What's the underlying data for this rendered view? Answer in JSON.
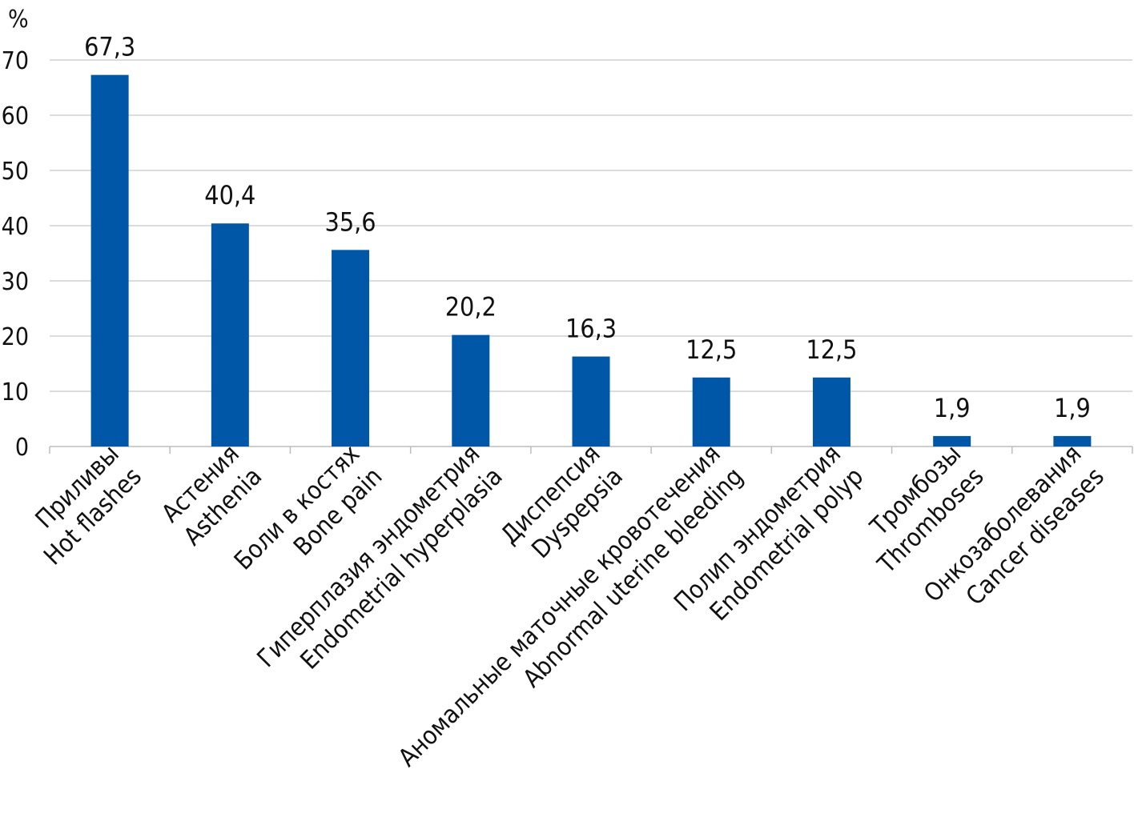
{
  "chart_data": {
    "type": "bar",
    "ylabel": "%",
    "ylim": [
      0,
      70
    ],
    "yticks": [
      0,
      10,
      20,
      30,
      40,
      50,
      60,
      70
    ],
    "grid": true,
    "legend": "none",
    "bar_color": "#0057A8",
    "categories": [
      [
        "Приливы",
        "Hot flashes"
      ],
      [
        "Астения",
        "Asthenia"
      ],
      [
        "Боли в костях",
        "Bone pain"
      ],
      [
        "Гиперплазия эндометрия",
        "Endometrial hyperplasia"
      ],
      [
        "Диспепсия",
        "Dyspepsia"
      ],
      [
        "Аномальные маточные кровотечения",
        "Abnormal uterine bleeding"
      ],
      [
        "Полип эндометрия",
        "Endometrial polyp"
      ],
      [
        "Тромбозы",
        "Thromboses"
      ],
      [
        "Онкозаболевания",
        "Cancer diseases"
      ]
    ],
    "values": [
      67.3,
      40.4,
      35.6,
      20.2,
      16.3,
      12.5,
      12.5,
      1.9,
      1.9
    ],
    "value_labels": [
      "67,3",
      "40,4",
      "35,6",
      "20,2",
      "16,3",
      "12,5",
      "12,5",
      "1,9",
      "1,9"
    ]
  }
}
